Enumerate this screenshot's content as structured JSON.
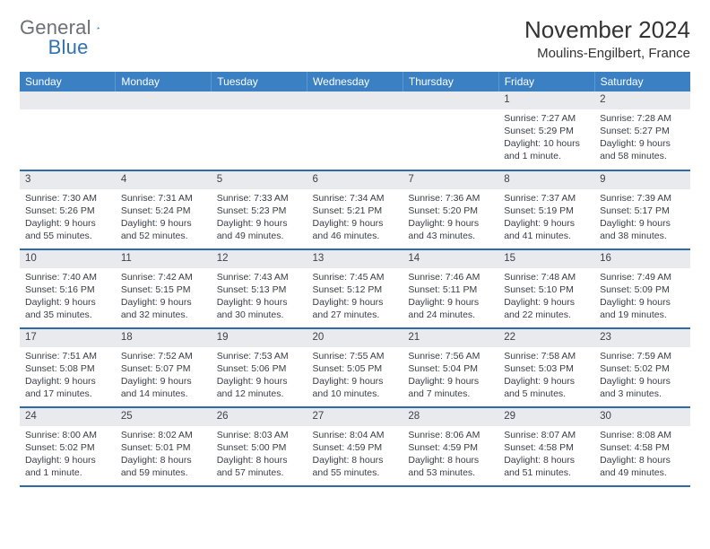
{
  "logo": {
    "part1": "General",
    "part2": "Blue"
  },
  "title": "November 2024",
  "location": "Moulins-Engilbert, France",
  "colors": {
    "header_bg": "#3a80c3",
    "header_text": "#ffffff",
    "row_divider": "#2f69a7",
    "daynum_bg": "#e8eaed",
    "logo_gray": "#6b6f76",
    "logo_blue": "#2f73b6"
  },
  "day_headers": [
    "Sunday",
    "Monday",
    "Tuesday",
    "Wednesday",
    "Thursday",
    "Friday",
    "Saturday"
  ],
  "weeks": [
    [
      null,
      null,
      null,
      null,
      null,
      {
        "n": "1",
        "sunrise": "Sunrise: 7:27 AM",
        "sunset": "Sunset: 5:29 PM",
        "daylight": "Daylight: 10 hours and 1 minute."
      },
      {
        "n": "2",
        "sunrise": "Sunrise: 7:28 AM",
        "sunset": "Sunset: 5:27 PM",
        "daylight": "Daylight: 9 hours and 58 minutes."
      }
    ],
    [
      {
        "n": "3",
        "sunrise": "Sunrise: 7:30 AM",
        "sunset": "Sunset: 5:26 PM",
        "daylight": "Daylight: 9 hours and 55 minutes."
      },
      {
        "n": "4",
        "sunrise": "Sunrise: 7:31 AM",
        "sunset": "Sunset: 5:24 PM",
        "daylight": "Daylight: 9 hours and 52 minutes."
      },
      {
        "n": "5",
        "sunrise": "Sunrise: 7:33 AM",
        "sunset": "Sunset: 5:23 PM",
        "daylight": "Daylight: 9 hours and 49 minutes."
      },
      {
        "n": "6",
        "sunrise": "Sunrise: 7:34 AM",
        "sunset": "Sunset: 5:21 PM",
        "daylight": "Daylight: 9 hours and 46 minutes."
      },
      {
        "n": "7",
        "sunrise": "Sunrise: 7:36 AM",
        "sunset": "Sunset: 5:20 PM",
        "daylight": "Daylight: 9 hours and 43 minutes."
      },
      {
        "n": "8",
        "sunrise": "Sunrise: 7:37 AM",
        "sunset": "Sunset: 5:19 PM",
        "daylight": "Daylight: 9 hours and 41 minutes."
      },
      {
        "n": "9",
        "sunrise": "Sunrise: 7:39 AM",
        "sunset": "Sunset: 5:17 PM",
        "daylight": "Daylight: 9 hours and 38 minutes."
      }
    ],
    [
      {
        "n": "10",
        "sunrise": "Sunrise: 7:40 AM",
        "sunset": "Sunset: 5:16 PM",
        "daylight": "Daylight: 9 hours and 35 minutes."
      },
      {
        "n": "11",
        "sunrise": "Sunrise: 7:42 AM",
        "sunset": "Sunset: 5:15 PM",
        "daylight": "Daylight: 9 hours and 32 minutes."
      },
      {
        "n": "12",
        "sunrise": "Sunrise: 7:43 AM",
        "sunset": "Sunset: 5:13 PM",
        "daylight": "Daylight: 9 hours and 30 minutes."
      },
      {
        "n": "13",
        "sunrise": "Sunrise: 7:45 AM",
        "sunset": "Sunset: 5:12 PM",
        "daylight": "Daylight: 9 hours and 27 minutes."
      },
      {
        "n": "14",
        "sunrise": "Sunrise: 7:46 AM",
        "sunset": "Sunset: 5:11 PM",
        "daylight": "Daylight: 9 hours and 24 minutes."
      },
      {
        "n": "15",
        "sunrise": "Sunrise: 7:48 AM",
        "sunset": "Sunset: 5:10 PM",
        "daylight": "Daylight: 9 hours and 22 minutes."
      },
      {
        "n": "16",
        "sunrise": "Sunrise: 7:49 AM",
        "sunset": "Sunset: 5:09 PM",
        "daylight": "Daylight: 9 hours and 19 minutes."
      }
    ],
    [
      {
        "n": "17",
        "sunrise": "Sunrise: 7:51 AM",
        "sunset": "Sunset: 5:08 PM",
        "daylight": "Daylight: 9 hours and 17 minutes."
      },
      {
        "n": "18",
        "sunrise": "Sunrise: 7:52 AM",
        "sunset": "Sunset: 5:07 PM",
        "daylight": "Daylight: 9 hours and 14 minutes."
      },
      {
        "n": "19",
        "sunrise": "Sunrise: 7:53 AM",
        "sunset": "Sunset: 5:06 PM",
        "daylight": "Daylight: 9 hours and 12 minutes."
      },
      {
        "n": "20",
        "sunrise": "Sunrise: 7:55 AM",
        "sunset": "Sunset: 5:05 PM",
        "daylight": "Daylight: 9 hours and 10 minutes."
      },
      {
        "n": "21",
        "sunrise": "Sunrise: 7:56 AM",
        "sunset": "Sunset: 5:04 PM",
        "daylight": "Daylight: 9 hours and 7 minutes."
      },
      {
        "n": "22",
        "sunrise": "Sunrise: 7:58 AM",
        "sunset": "Sunset: 5:03 PM",
        "daylight": "Daylight: 9 hours and 5 minutes."
      },
      {
        "n": "23",
        "sunrise": "Sunrise: 7:59 AM",
        "sunset": "Sunset: 5:02 PM",
        "daylight": "Daylight: 9 hours and 3 minutes."
      }
    ],
    [
      {
        "n": "24",
        "sunrise": "Sunrise: 8:00 AM",
        "sunset": "Sunset: 5:02 PM",
        "daylight": "Daylight: 9 hours and 1 minute."
      },
      {
        "n": "25",
        "sunrise": "Sunrise: 8:02 AM",
        "sunset": "Sunset: 5:01 PM",
        "daylight": "Daylight: 8 hours and 59 minutes."
      },
      {
        "n": "26",
        "sunrise": "Sunrise: 8:03 AM",
        "sunset": "Sunset: 5:00 PM",
        "daylight": "Daylight: 8 hours and 57 minutes."
      },
      {
        "n": "27",
        "sunrise": "Sunrise: 8:04 AM",
        "sunset": "Sunset: 4:59 PM",
        "daylight": "Daylight: 8 hours and 55 minutes."
      },
      {
        "n": "28",
        "sunrise": "Sunrise: 8:06 AM",
        "sunset": "Sunset: 4:59 PM",
        "daylight": "Daylight: 8 hours and 53 minutes."
      },
      {
        "n": "29",
        "sunrise": "Sunrise: 8:07 AM",
        "sunset": "Sunset: 4:58 PM",
        "daylight": "Daylight: 8 hours and 51 minutes."
      },
      {
        "n": "30",
        "sunrise": "Sunrise: 8:08 AM",
        "sunset": "Sunset: 4:58 PM",
        "daylight": "Daylight: 8 hours and 49 minutes."
      }
    ]
  ]
}
